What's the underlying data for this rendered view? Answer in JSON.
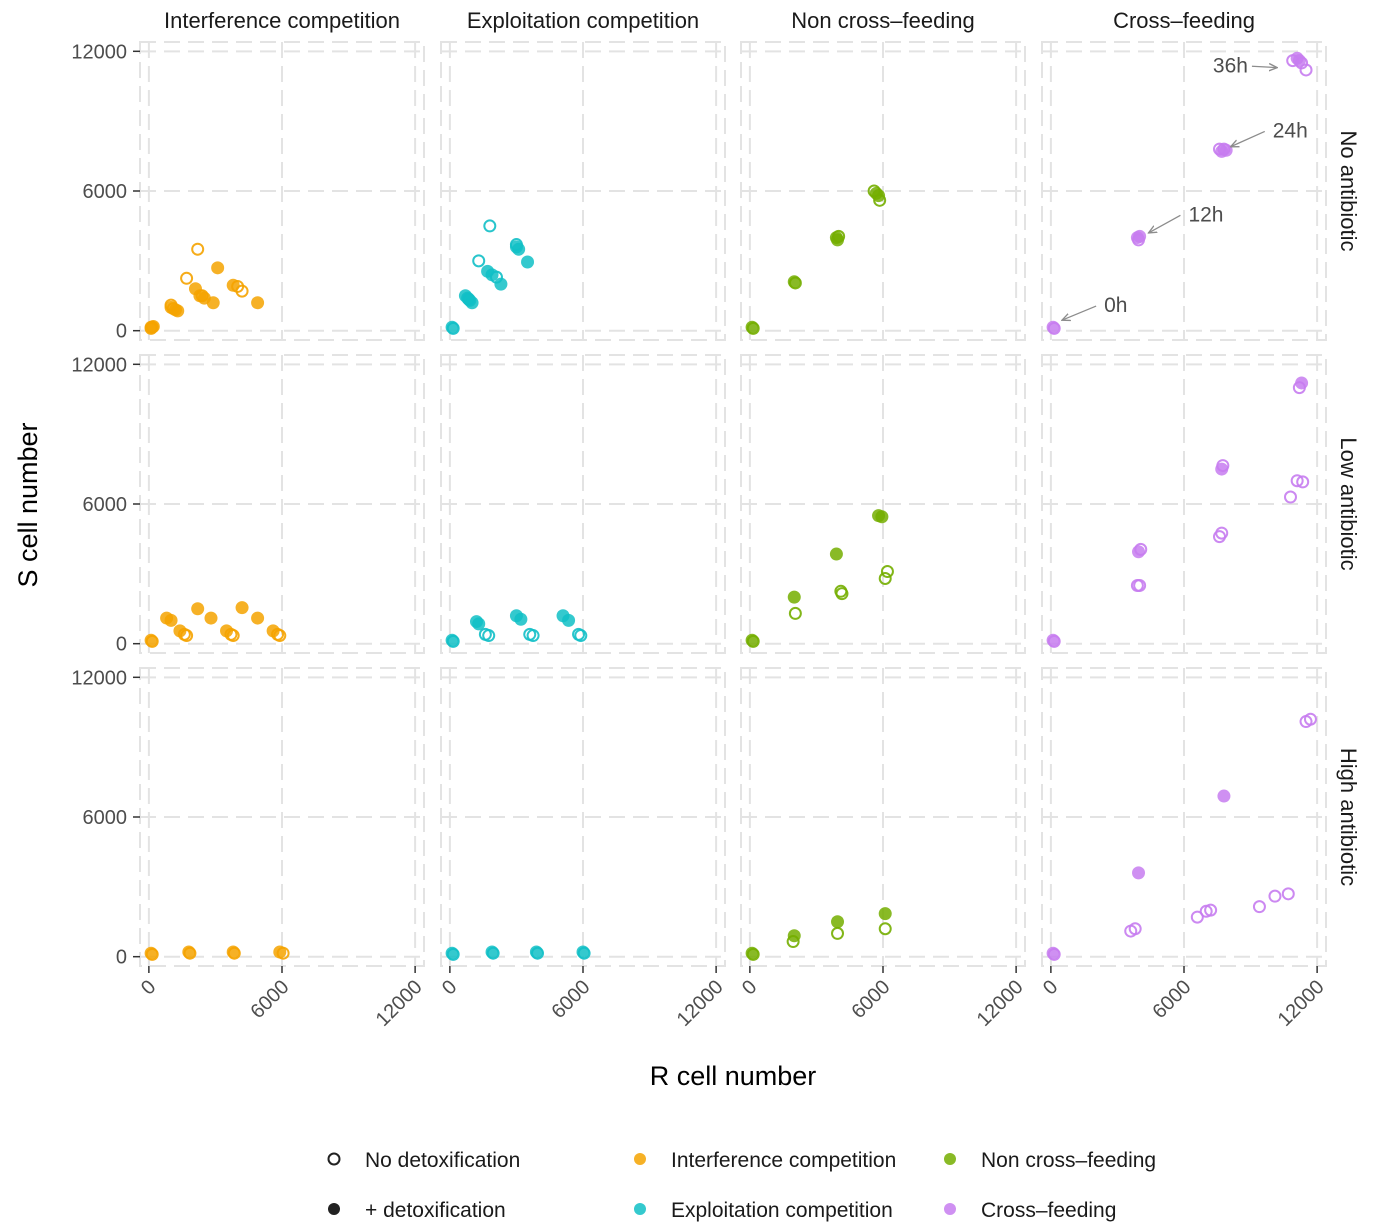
{
  "chart_data": {
    "type": "scatter",
    "title": "",
    "xlabel": "R cell number",
    "ylabel": "S cell number",
    "xlim": [
      -400,
      12400
    ],
    "ylim": [
      -400,
      12400
    ],
    "x_ticks": [
      "0",
      "6000",
      "12000"
    ],
    "y_ticks": [
      "0",
      "6000",
      "12000"
    ],
    "grid": "on (dashed)",
    "columns": [
      "Interference competition",
      "Exploitation competition",
      "Non cross–feeding",
      "Cross–feeding"
    ],
    "rows": [
      "No antibiotic",
      "Low antibiotic",
      "High antibiotic"
    ],
    "column_colors": [
      "#F5A300",
      "#11BFC6",
      "#74AE00",
      "#C77CF0"
    ],
    "legend": {
      "position": "bottom",
      "shape_items": [
        {
          "label": "No detoxification",
          "filled": false
        },
        {
          "label": "+ detoxification",
          "filled": true
        }
      ],
      "color_items": [
        {
          "label": "Interference competition",
          "color": "#F5A300"
        },
        {
          "label": "Exploitation competition",
          "color": "#11BFC6"
        },
        {
          "label": "Non cross–feeding",
          "color": "#74AE00"
        },
        {
          "label": "Cross–feeding",
          "color": "#C77CF0"
        }
      ]
    },
    "annotations": [
      {
        "panel": [
          0,
          3
        ],
        "text": "0h",
        "point": [
          500,
          450
        ],
        "label": [
          2400,
          800
        ]
      },
      {
        "panel": [
          0,
          3
        ],
        "text": "12h",
        "point": [
          4400,
          4200
        ],
        "label": [
          6200,
          4700
        ]
      },
      {
        "panel": [
          0,
          3
        ],
        "text": "24h",
        "point": [
          8100,
          7900
        ],
        "label": [
          10000,
          8300
        ]
      },
      {
        "panel": [
          0,
          3
        ],
        "text": "36h",
        "point": [
          10200,
          11300
        ],
        "label": [
          7800,
          11100
        ]
      }
    ],
    "panels": [
      {
        "row": 0,
        "col": 0,
        "points": [
          {
            "x": 100,
            "y": 150,
            "filled": true
          },
          {
            "x": 200,
            "y": 180,
            "filled": true
          },
          {
            "x": 100,
            "y": 100,
            "filled": false
          },
          {
            "x": 150,
            "y": 150,
            "filled": false
          },
          {
            "x": 1000,
            "y": 1100,
            "filled": false
          },
          {
            "x": 1100,
            "y": 950,
            "filled": false
          },
          {
            "x": 1200,
            "y": 900,
            "filled": true
          },
          {
            "x": 1300,
            "y": 850,
            "filled": true
          },
          {
            "x": 1000,
            "y": 1000,
            "filled": true
          },
          {
            "x": 2200,
            "y": 3500,
            "filled": false
          },
          {
            "x": 1700,
            "y": 2250,
            "filled": false
          },
          {
            "x": 3100,
            "y": 2700,
            "filled": true
          },
          {
            "x": 2100,
            "y": 1800,
            "filled": true
          },
          {
            "x": 2300,
            "y": 1500,
            "filled": true
          },
          {
            "x": 2500,
            "y": 1400,
            "filled": true
          },
          {
            "x": 2900,
            "y": 1200,
            "filled": true
          },
          {
            "x": 2400,
            "y": 1500,
            "filled": false
          },
          {
            "x": 3800,
            "y": 1950,
            "filled": true
          },
          {
            "x": 4000,
            "y": 1900,
            "filled": false
          },
          {
            "x": 4200,
            "y": 1700,
            "filled": false
          },
          {
            "x": 4900,
            "y": 1200,
            "filled": true
          }
        ]
      },
      {
        "row": 0,
        "col": 1,
        "points": [
          {
            "x": 100,
            "y": 150,
            "filled": true
          },
          {
            "x": 150,
            "y": 100,
            "filled": false
          },
          {
            "x": 1800,
            "y": 4500,
            "filled": false
          },
          {
            "x": 1300,
            "y": 3000,
            "filled": false
          },
          {
            "x": 3000,
            "y": 3700,
            "filled": false
          },
          {
            "x": 3100,
            "y": 3500,
            "filled": true
          },
          {
            "x": 3000,
            "y": 3600,
            "filled": true
          },
          {
            "x": 3500,
            "y": 2950,
            "filled": true
          },
          {
            "x": 1700,
            "y": 2550,
            "filled": true
          },
          {
            "x": 1900,
            "y": 2400,
            "filled": true
          },
          {
            "x": 2100,
            "y": 2300,
            "filled": false
          },
          {
            "x": 2300,
            "y": 2000,
            "filled": true
          },
          {
            "x": 700,
            "y": 1500,
            "filled": true
          },
          {
            "x": 800,
            "y": 1400,
            "filled": true
          },
          {
            "x": 900,
            "y": 1300,
            "filled": true
          },
          {
            "x": 1000,
            "y": 1200,
            "filled": true
          },
          {
            "x": 850,
            "y": 1350,
            "filled": false
          }
        ]
      },
      {
        "row": 0,
        "col": 2,
        "points": [
          {
            "x": 100,
            "y": 150,
            "filled": true
          },
          {
            "x": 150,
            "y": 100,
            "filled": false
          },
          {
            "x": 2000,
            "y": 2100,
            "filled": true
          },
          {
            "x": 2050,
            "y": 2050,
            "filled": false
          },
          {
            "x": 3900,
            "y": 4000,
            "filled": true
          },
          {
            "x": 3950,
            "y": 3900,
            "filled": true
          },
          {
            "x": 4000,
            "y": 4050,
            "filled": false
          },
          {
            "x": 5600,
            "y": 6000,
            "filled": false
          },
          {
            "x": 5700,
            "y": 5900,
            "filled": true
          },
          {
            "x": 5800,
            "y": 5800,
            "filled": true
          },
          {
            "x": 5850,
            "y": 5600,
            "filled": false
          }
        ]
      },
      {
        "row": 0,
        "col": 3,
        "points": [
          {
            "x": 100,
            "y": 150,
            "filled": true
          },
          {
            "x": 150,
            "y": 100,
            "filled": false
          },
          {
            "x": 3900,
            "y": 4000,
            "filled": true
          },
          {
            "x": 3950,
            "y": 3900,
            "filled": false
          },
          {
            "x": 4000,
            "y": 4050,
            "filled": true
          },
          {
            "x": 7600,
            "y": 7800,
            "filled": false
          },
          {
            "x": 7700,
            "y": 7700,
            "filled": true
          },
          {
            "x": 7800,
            "y": 7800,
            "filled": false
          },
          {
            "x": 7900,
            "y": 7750,
            "filled": true
          },
          {
            "x": 10900,
            "y": 11600,
            "filled": false
          },
          {
            "x": 11100,
            "y": 11700,
            "filled": true
          },
          {
            "x": 11300,
            "y": 11500,
            "filled": false
          },
          {
            "x": 11500,
            "y": 11200,
            "filled": false
          },
          {
            "x": 11200,
            "y": 11600,
            "filled": true
          }
        ]
      },
      {
        "row": 1,
        "col": 0,
        "points": [
          {
            "x": 100,
            "y": 150,
            "filled": true
          },
          {
            "x": 150,
            "y": 100,
            "filled": false
          },
          {
            "x": 800,
            "y": 1100,
            "filled": true
          },
          {
            "x": 1000,
            "y": 1000,
            "filled": true
          },
          {
            "x": 1400,
            "y": 550,
            "filled": true
          },
          {
            "x": 1600,
            "y": 400,
            "filled": false
          },
          {
            "x": 1700,
            "y": 350,
            "filled": false
          },
          {
            "x": 2200,
            "y": 1500,
            "filled": true
          },
          {
            "x": 2800,
            "y": 1100,
            "filled": true
          },
          {
            "x": 3500,
            "y": 550,
            "filled": true
          },
          {
            "x": 3700,
            "y": 400,
            "filled": false
          },
          {
            "x": 3800,
            "y": 350,
            "filled": false
          },
          {
            "x": 4200,
            "y": 1550,
            "filled": true
          },
          {
            "x": 4900,
            "y": 1100,
            "filled": true
          },
          {
            "x": 5600,
            "y": 550,
            "filled": true
          },
          {
            "x": 5800,
            "y": 400,
            "filled": false
          },
          {
            "x": 5900,
            "y": 350,
            "filled": false
          }
        ]
      },
      {
        "row": 1,
        "col": 1,
        "points": [
          {
            "x": 100,
            "y": 150,
            "filled": true
          },
          {
            "x": 150,
            "y": 100,
            "filled": false
          },
          {
            "x": 1200,
            "y": 950,
            "filled": true
          },
          {
            "x": 1300,
            "y": 850,
            "filled": true
          },
          {
            "x": 1600,
            "y": 400,
            "filled": false
          },
          {
            "x": 1750,
            "y": 350,
            "filled": false
          },
          {
            "x": 3000,
            "y": 1200,
            "filled": true
          },
          {
            "x": 3200,
            "y": 1050,
            "filled": true
          },
          {
            "x": 3600,
            "y": 400,
            "filled": false
          },
          {
            "x": 3750,
            "y": 350,
            "filled": false
          },
          {
            "x": 5100,
            "y": 1200,
            "filled": true
          },
          {
            "x": 5350,
            "y": 1000,
            "filled": true
          },
          {
            "x": 5800,
            "y": 400,
            "filled": false
          },
          {
            "x": 5900,
            "y": 350,
            "filled": false
          }
        ]
      },
      {
        "row": 1,
        "col": 2,
        "points": [
          {
            "x": 100,
            "y": 150,
            "filled": true
          },
          {
            "x": 150,
            "y": 100,
            "filled": false
          },
          {
            "x": 2000,
            "y": 2000,
            "filled": true
          },
          {
            "x": 2050,
            "y": 1300,
            "filled": false
          },
          {
            "x": 3900,
            "y": 3850,
            "filled": true
          },
          {
            "x": 4100,
            "y": 2250,
            "filled": false
          },
          {
            "x": 4150,
            "y": 2150,
            "filled": false
          },
          {
            "x": 5800,
            "y": 5500,
            "filled": true
          },
          {
            "x": 5950,
            "y": 5450,
            "filled": true
          },
          {
            "x": 6200,
            "y": 3100,
            "filled": false
          },
          {
            "x": 6100,
            "y": 2800,
            "filled": false
          }
        ]
      },
      {
        "row": 1,
        "col": 3,
        "points": [
          {
            "x": 100,
            "y": 150,
            "filled": true
          },
          {
            "x": 150,
            "y": 100,
            "filled": false
          },
          {
            "x": 3900,
            "y": 2500,
            "filled": false
          },
          {
            "x": 4000,
            "y": 2500,
            "filled": false
          },
          {
            "x": 3950,
            "y": 3950,
            "filled": true
          },
          {
            "x": 4050,
            "y": 4050,
            "filled": false
          },
          {
            "x": 7600,
            "y": 4600,
            "filled": false
          },
          {
            "x": 7700,
            "y": 4750,
            "filled": false
          },
          {
            "x": 7700,
            "y": 7500,
            "filled": true
          },
          {
            "x": 7750,
            "y": 7650,
            "filled": false
          },
          {
            "x": 10800,
            "y": 6300,
            "filled": false
          },
          {
            "x": 11100,
            "y": 7000,
            "filled": false
          },
          {
            "x": 11350,
            "y": 6950,
            "filled": false
          },
          {
            "x": 11200,
            "y": 11000,
            "filled": false
          },
          {
            "x": 11300,
            "y": 11200,
            "filled": true
          }
        ]
      },
      {
        "row": 2,
        "col": 0,
        "points": [
          {
            "x": 100,
            "y": 150,
            "filled": true
          },
          {
            "x": 150,
            "y": 100,
            "filled": false
          },
          {
            "x": 1800,
            "y": 200,
            "filled": true
          },
          {
            "x": 1850,
            "y": 150,
            "filled": false
          },
          {
            "x": 3800,
            "y": 200,
            "filled": true
          },
          {
            "x": 3850,
            "y": 150,
            "filled": false
          },
          {
            "x": 5900,
            "y": 200,
            "filled": true
          },
          {
            "x": 6050,
            "y": 150,
            "filled": false
          }
        ]
      },
      {
        "row": 2,
        "col": 1,
        "points": [
          {
            "x": 100,
            "y": 150,
            "filled": true
          },
          {
            "x": 150,
            "y": 100,
            "filled": false
          },
          {
            "x": 1900,
            "y": 200,
            "filled": true
          },
          {
            "x": 1950,
            "y": 150,
            "filled": false
          },
          {
            "x": 3900,
            "y": 200,
            "filled": true
          },
          {
            "x": 3950,
            "y": 150,
            "filled": false
          },
          {
            "x": 6000,
            "y": 200,
            "filled": true
          },
          {
            "x": 6050,
            "y": 150,
            "filled": false
          }
        ]
      },
      {
        "row": 2,
        "col": 2,
        "points": [
          {
            "x": 100,
            "y": 150,
            "filled": true
          },
          {
            "x": 150,
            "y": 100,
            "filled": false
          },
          {
            "x": 2000,
            "y": 900,
            "filled": true
          },
          {
            "x": 1950,
            "y": 650,
            "filled": false
          },
          {
            "x": 3950,
            "y": 1500,
            "filled": true
          },
          {
            "x": 3950,
            "y": 1000,
            "filled": false
          },
          {
            "x": 6100,
            "y": 1850,
            "filled": true
          },
          {
            "x": 6100,
            "y": 1200,
            "filled": false
          }
        ]
      },
      {
        "row": 2,
        "col": 3,
        "points": [
          {
            "x": 100,
            "y": 150,
            "filled": true
          },
          {
            "x": 150,
            "y": 100,
            "filled": false
          },
          {
            "x": 3600,
            "y": 1100,
            "filled": false
          },
          {
            "x": 3800,
            "y": 1200,
            "filled": false
          },
          {
            "x": 3950,
            "y": 3600,
            "filled": true
          },
          {
            "x": 6600,
            "y": 1700,
            "filled": false
          },
          {
            "x": 7000,
            "y": 1950,
            "filled": false
          },
          {
            "x": 7200,
            "y": 2000,
            "filled": false
          },
          {
            "x": 7800,
            "y": 6900,
            "filled": true
          },
          {
            "x": 9400,
            "y": 2150,
            "filled": false
          },
          {
            "x": 10100,
            "y": 2600,
            "filled": false
          },
          {
            "x": 10700,
            "y": 2700,
            "filled": false
          },
          {
            "x": 11500,
            "y": 10100,
            "filled": false
          },
          {
            "x": 11700,
            "y": 10200,
            "filled": false
          }
        ]
      }
    ]
  }
}
